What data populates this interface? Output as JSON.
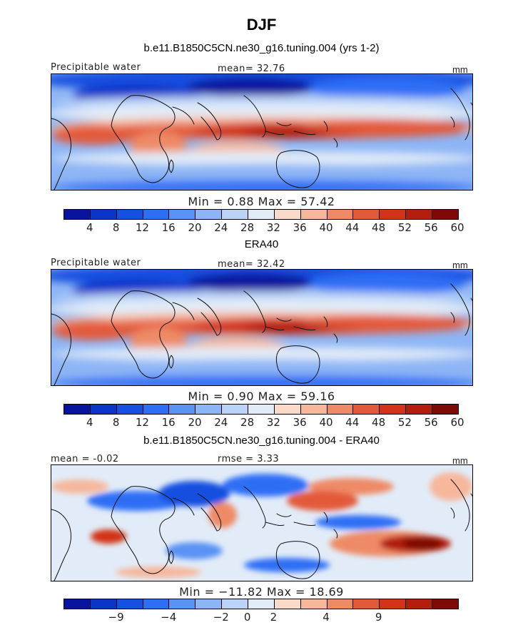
{
  "title": "DJF",
  "panels": [
    {
      "title": "b.e11.B1850C5CN.ne30_g16.tuning.004 (yrs 1-2)",
      "left_label": "Precipitable water",
      "center_label": "mean=  32.76",
      "units": "mm",
      "min_max": "Min =    0.88  Max =   57.42",
      "colorbar_ticks": [
        "4",
        "8",
        "12",
        "16",
        "20",
        "24",
        "28",
        "32",
        "36",
        "40",
        "44",
        "48",
        "52",
        "56",
        "60"
      ]
    },
    {
      "title": "ERA40",
      "left_label": "Precipitable water",
      "center_label": "mean=  32.42",
      "units": "mm",
      "min_max": "Min =    0.90  Max =   59.16",
      "colorbar_ticks": [
        "4",
        "8",
        "12",
        "16",
        "20",
        "24",
        "28",
        "32",
        "36",
        "40",
        "44",
        "48",
        "52",
        "56",
        "60"
      ]
    },
    {
      "title": "b.e11.B1850C5CN.ne30_g16.tuning.004 - ERA40",
      "left_label": "mean =  -0.02",
      "center_label": "rmse =    3.33",
      "units": "mm",
      "min_max": "Min = −11.82  Max =  18.69",
      "colorbar_ticks": [
        "−9",
        "−4",
        "−2",
        "0",
        "2",
        "4",
        "9"
      ]
    }
  ],
  "colors": {
    "palette": [
      "#08139e",
      "#0a35c8",
      "#1550e0",
      "#2e6ef5",
      "#5a93f3",
      "#8db5f5",
      "#bad3f7",
      "#e2ecf8",
      "#f9d9c8",
      "#f6b79c",
      "#ee8a66",
      "#e35a3a",
      "#d13218",
      "#b31e0e",
      "#7d0a06"
    ]
  }
}
